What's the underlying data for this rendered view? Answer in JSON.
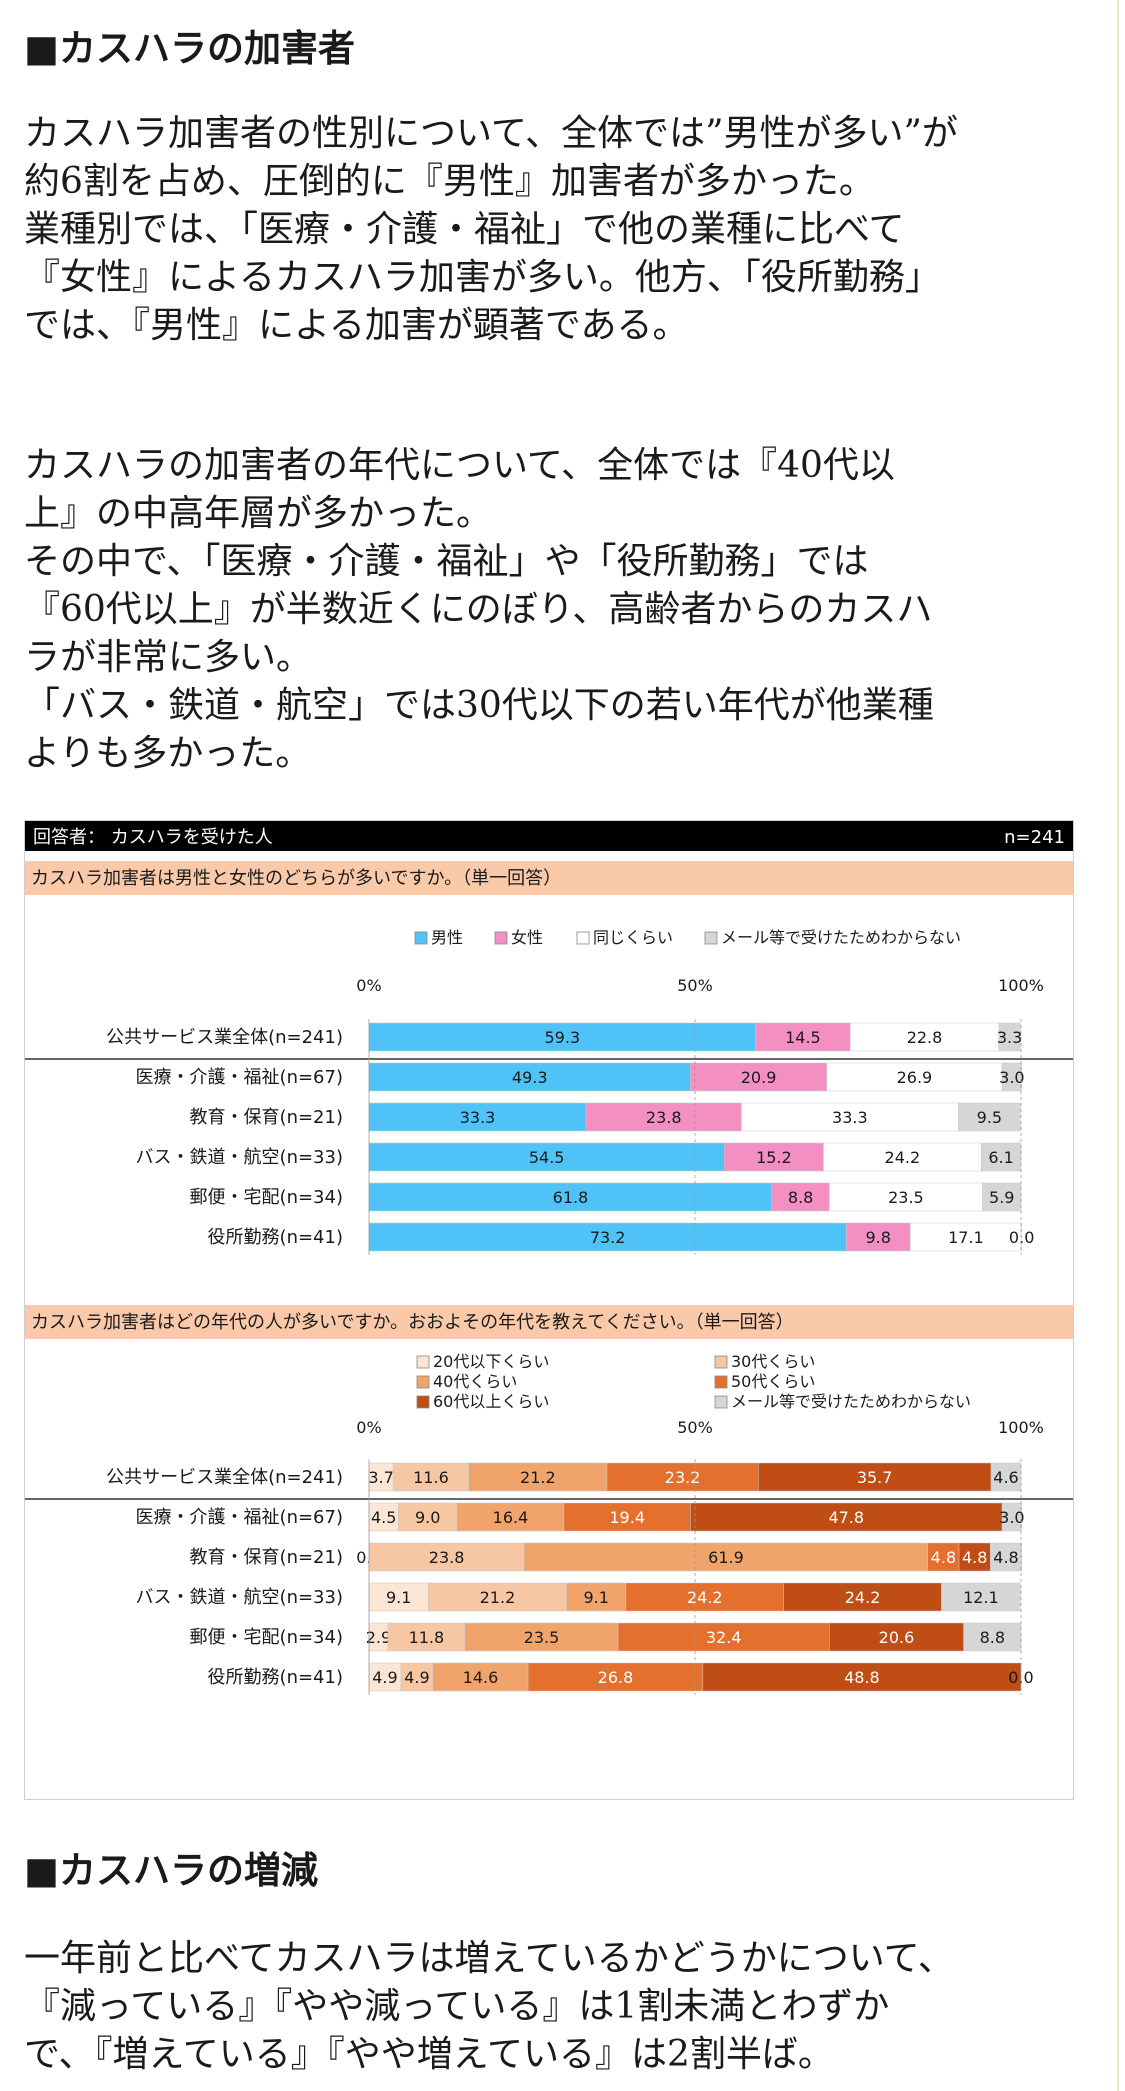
{
  "section1": {
    "heading": "■カスハラの加害者",
    "para1_lines": [
      "カスハラ加害者の性別について、全体では”男性が多い”が",
      "約6割を占め、圧倒的に『男性』加害者が多かった。",
      "業種別では、「医療・介護・福祉」で他の業種に比べて",
      "『女性』によるカスハラ加害が多い。他方、「役所勤務」",
      "では、『男性』による加害が顕著である。"
    ],
    "para2_lines": [
      "カスハラの加害者の年代について、全体では『40代以",
      "上』の中高年層が多かった。",
      "その中で、「医療・介護・福祉」や「役所勤務」では",
      "『60代以上』が半数近くにのぼり、高齢者からのカスハ",
      "ラが非常に多い。",
      "「バス・鉄道・航空」では30代以下の若い年代が他業種",
      "よりも多かった。"
    ]
  },
  "chart_header": {
    "respondents": "回答者： カスハラを受けた人",
    "n": "n=241"
  },
  "colors": {
    "header_bg": "#000000",
    "question_bg": "#f9c9a9",
    "male": "#4fc3f7",
    "female": "#f48fc4",
    "same": "#ffffff",
    "unknown": "#d6d6d6",
    "age20": "#fbe6d6",
    "age30": "#f7c6a3",
    "age40": "#f0a46b",
    "age50": "#e56f2c",
    "age60": "#bf4d14"
  },
  "chart_data": [
    {
      "type": "bar",
      "stacked": true,
      "orientation": "horizontal",
      "title": "カスハラ加害者は男性と女性のどちらが多いですか。（単一回答）",
      "axis_ticks": [
        "0%",
        "50%",
        "100%"
      ],
      "xlim": [
        0,
        100
      ],
      "categories": [
        "公共サービス業全体(n=241)",
        "医療・介護・福祉(n=67)",
        "教育・保育(n=21)",
        "バス・鉄道・航空(n=33)",
        "郵便・宅配(n=34)",
        "役所勤務(n=41)"
      ],
      "series": [
        {
          "name": "男性",
          "color": "#4fc3f7",
          "values": [
            59.3,
            49.3,
            33.3,
            54.5,
            61.8,
            73.2
          ]
        },
        {
          "name": "女性",
          "color": "#f48fc4",
          "values": [
            14.5,
            20.9,
            23.8,
            15.2,
            8.8,
            9.8
          ]
        },
        {
          "name": "同じくらい",
          "color": "#ffffff",
          "values": [
            22.8,
            26.9,
            33.3,
            24.2,
            23.5,
            17.1
          ]
        },
        {
          "name": "メール等で受けたためわからない",
          "color": "#d6d6d6",
          "values": [
            3.3,
            3.0,
            9.5,
            6.1,
            5.9,
            0.0
          ]
        }
      ]
    },
    {
      "type": "bar",
      "stacked": true,
      "orientation": "horizontal",
      "title": "カスハラ加害者はどの年代の人が多いですか。おおよその年代を教えてください。（単一回答）",
      "axis_ticks": [
        "0%",
        "50%",
        "100%"
      ],
      "xlim": [
        0,
        100
      ],
      "categories": [
        "公共サービス業全体(n=241)",
        "医療・介護・福祉(n=67)",
        "教育・保育(n=21)",
        "バス・鉄道・航空(n=33)",
        "郵便・宅配(n=34)",
        "役所勤務(n=41)"
      ],
      "series": [
        {
          "name": "20代以下くらい",
          "color": "#fbe6d6",
          "values": [
            3.7,
            4.5,
            0.0,
            9.1,
            2.9,
            4.9
          ]
        },
        {
          "name": "30代くらい",
          "color": "#f7c6a3",
          "values": [
            11.6,
            9.0,
            23.8,
            21.2,
            11.8,
            4.9
          ]
        },
        {
          "name": "40代くらい",
          "color": "#f0a46b",
          "values": [
            21.2,
            16.4,
            61.9,
            9.1,
            23.5,
            14.6
          ]
        },
        {
          "name": "50代くらい",
          "color": "#e56f2c",
          "values": [
            23.2,
            19.4,
            4.8,
            24.2,
            32.4,
            26.8
          ]
        },
        {
          "name": "60代以上くらい",
          "color": "#bf4d14",
          "values": [
            35.7,
            47.8,
            4.8,
            24.2,
            20.6,
            48.8
          ]
        },
        {
          "name": "メール等で受けたためわからない",
          "color": "#d6d6d6",
          "values": [
            4.6,
            3.0,
            4.8,
            12.1,
            8.8,
            0.0
          ]
        }
      ]
    }
  ],
  "section2": {
    "heading": "■カスハラの増減",
    "para_lines": [
      "一年前と比べてカスハラは増えているかどうかについて、",
      "『減っている』『やや減っている』は1割未満とわずか",
      "で、『増えている』『やや増えている』は2割半ば。"
    ]
  }
}
